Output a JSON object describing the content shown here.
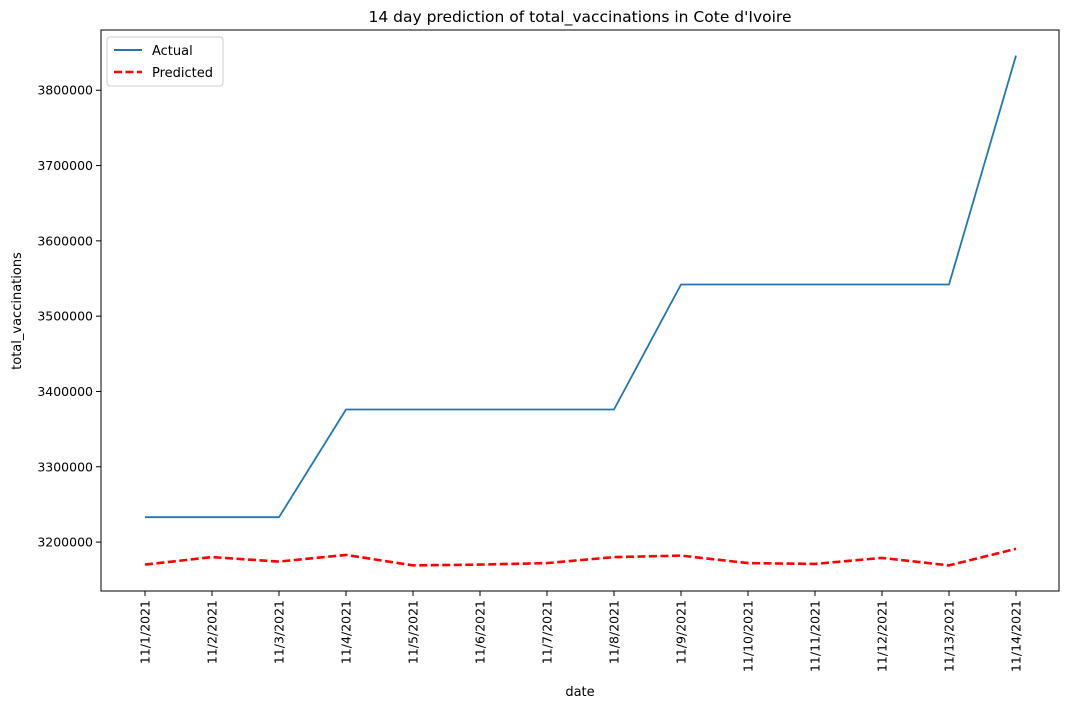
{
  "chart_data": {
    "type": "line",
    "title": "14 day prediction of total_vaccinations in Cote d'Ivoire",
    "xlabel": "date",
    "ylabel": "total_vaccinations",
    "categories": [
      "11/1/2021",
      "11/2/2021",
      "11/3/2021",
      "11/4/2021",
      "11/5/2021",
      "11/6/2021",
      "11/7/2021",
      "11/8/2021",
      "11/9/2021",
      "11/10/2021",
      "11/11/2021",
      "11/12/2021",
      "11/13/2021",
      "11/14/2021"
    ],
    "series": [
      {
        "name": "Actual",
        "color": "#1f77b4",
        "style": "solid",
        "values": [
          3233000,
          3233000,
          3233000,
          3376000,
          3376000,
          3376000,
          3376000,
          3376000,
          3542000,
          3542000,
          3542000,
          3542000,
          3542000,
          3846000
        ]
      },
      {
        "name": "Predicted",
        "color": "#ff0000",
        "style": "dashed",
        "values": [
          3170000,
          3180000,
          3174000,
          3183000,
          3169000,
          3170000,
          3172000,
          3180000,
          3182000,
          3172000,
          3171000,
          3179000,
          3169000,
          3191000
        ]
      }
    ],
    "yticks": [
      3200000,
      3300000,
      3400000,
      3500000,
      3600000,
      3700000,
      3800000
    ],
    "ylim": [
      3135000,
      3880000
    ],
    "legend": "top-left",
    "grid": false
  }
}
